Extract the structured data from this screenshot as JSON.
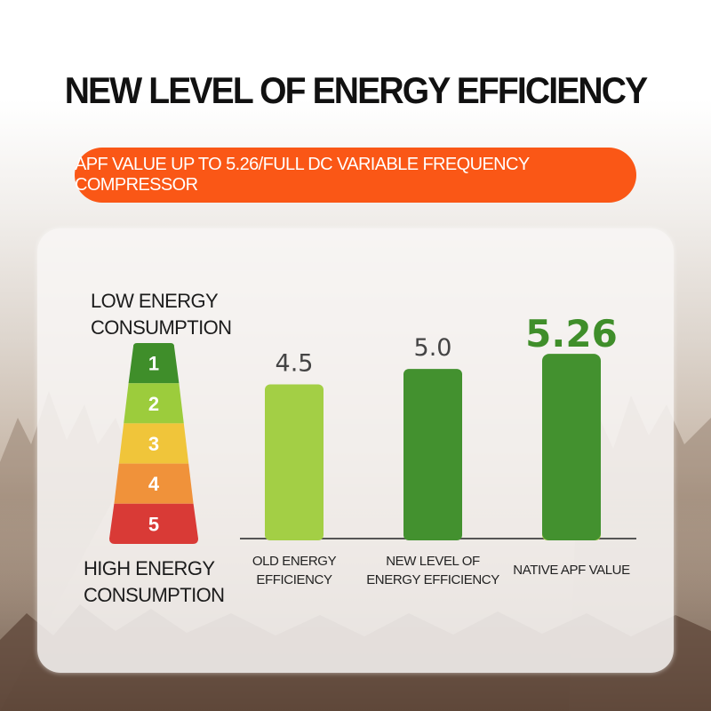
{
  "header": {
    "title": "NEW LEVEL OF ENERGY EFFICIENCY",
    "subtitle": "APF VALUE UP TO 5.26/FULL DC VARIABLE FREQUENCY COMPRESSOR"
  },
  "energy_scale": {
    "low_label_line1": "LOW ENERGY",
    "low_label_line2": "CONSUMPTION",
    "high_label_line1": "HIGH ENERGY",
    "high_label_line2": "CONSUMPTION",
    "levels": [
      {
        "label": "1",
        "color": "#3f8e2a"
      },
      {
        "label": "2",
        "color": "#9ccc3c"
      },
      {
        "label": "3",
        "color": "#f0c53a"
      },
      {
        "label": "4",
        "color": "#f0923a"
      },
      {
        "label": "5",
        "color": "#d93a36"
      }
    ]
  },
  "chart_data": {
    "type": "bar",
    "categories": [
      "OLD ENERGY EFFICIENCY",
      "NEW LEVEL OF ENERGY EFFICIENCY",
      "NATIVE APF VALUE"
    ],
    "category_lines": [
      [
        "OLD ENERGY",
        "EFFICIENCY"
      ],
      [
        "NEW LEVEL OF",
        "ENERGY EFFICIENCY"
      ],
      [
        "NATIVE APF VALUE"
      ]
    ],
    "values": [
      4.5,
      5.0,
      5.26
    ],
    "value_labels": [
      "4.5",
      "5.0",
      "5.26"
    ],
    "highlight_index": 2,
    "colors": {
      "light_green": "#a3cf45",
      "dark_green": "#43912f",
      "label_gray": "#444444",
      "highlight_label": "#3f8e2a"
    },
    "title": "",
    "xlabel": "",
    "ylabel": ""
  }
}
